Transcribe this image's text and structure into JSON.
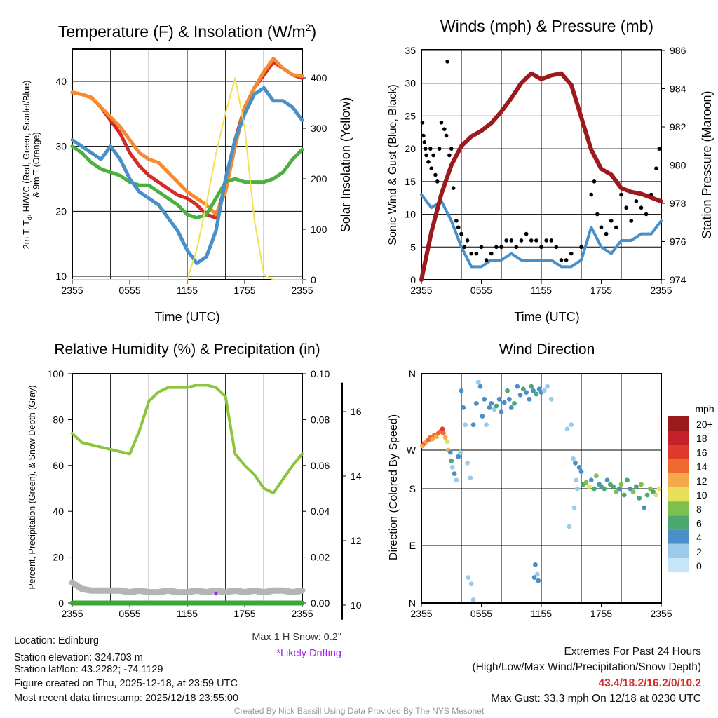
{
  "chart_data": [
    {
      "type": "line",
      "title": "Temperature (F) & Insolation (W/m²)",
      "title_main": "Temperature (F) & Insolation (W/m",
      "title_sup": "2",
      "title_end": ")",
      "xlabel": "Time (UTC)",
      "ylabel_line1": "2m T, T",
      "ylabel_sub": "d",
      "ylabel_rest": ", HI/WC (Red, Green, Scarlet/Blue)",
      "ylabel_line2": "& 9m T (Orange)",
      "y2label": "Solar Insolation (Yellow)",
      "xticks": [
        "2355",
        "0555",
        "1155",
        "1755",
        "2355"
      ],
      "yticks": [
        "10",
        "20",
        "30",
        "40"
      ],
      "y2ticks": [
        "0",
        "100",
        "200",
        "300",
        "400"
      ],
      "ylim": [
        9.5,
        45
      ],
      "y2lim": [
        0,
        465
      ],
      "hours": [
        0,
        1,
        2,
        3,
        4,
        5,
        6,
        7,
        8,
        9,
        10,
        11,
        12,
        13,
        14,
        15,
        16,
        17,
        18,
        19,
        20,
        21,
        22,
        23,
        24
      ],
      "series": [
        {
          "name": "2m T",
          "color": "#d42a2a",
          "values": [
            38.3,
            38,
            37.5,
            36,
            34,
            32,
            29,
            27,
            25.5,
            24.5,
            23.5,
            22.5,
            22,
            21,
            19.5,
            19,
            24,
            31,
            36,
            39,
            41,
            43,
            42,
            41,
            40.5
          ]
        },
        {
          "name": "9m T",
          "color": "#f68a2e",
          "values": [
            38.3,
            38,
            37.5,
            36,
            34.5,
            33,
            31,
            29,
            28,
            27.5,
            26,
            24.5,
            23,
            22,
            21,
            19.5,
            23,
            30,
            36,
            39,
            41.5,
            43.5,
            42,
            41,
            40.8
          ]
        },
        {
          "name": "Td",
          "color": "#4ab040",
          "values": [
            30,
            29,
            27.5,
            26.5,
            26,
            25.5,
            24.5,
            24,
            24,
            23,
            22,
            21,
            19.5,
            19,
            19.5,
            22,
            24.5,
            25,
            24.5,
            24.5,
            24.5,
            25,
            26,
            28,
            29.5
          ]
        },
        {
          "name": "Wind chill",
          "color": "#4a90c8",
          "values": [
            31,
            30,
            29,
            28,
            30,
            28,
            25,
            23,
            22,
            21,
            19,
            17,
            14,
            12,
            13,
            17,
            25,
            31,
            35,
            38,
            39,
            37,
            37,
            36,
            34
          ]
        },
        {
          "name": "Solar insolation",
          "color": "#f5e050",
          "axis": "right",
          "values": [
            0,
            0,
            0,
            0,
            0,
            0,
            0,
            0,
            0,
            0,
            0,
            0,
            0,
            60,
            150,
            250,
            330,
            400,
            300,
            120,
            10,
            0,
            0,
            0,
            0
          ]
        }
      ]
    },
    {
      "type": "line",
      "title": "Winds (mph) & Pressure (mb)",
      "xlabel": "Time (UTC)",
      "ylabel": "Sonic Wind & Gust (Blue, Black)",
      "y2label": "Station Pressure (Maroon)",
      "xticks": [
        "2355",
        "0555",
        "1155",
        "1755",
        "2355"
      ],
      "yticks": [
        "0",
        "5",
        "10",
        "15",
        "20",
        "25",
        "30",
        "35"
      ],
      "y2ticks": [
        "974",
        "976",
        "978",
        "980",
        "982",
        "984",
        "986"
      ],
      "ylim": [
        0,
        35
      ],
      "y2lim": [
        974,
        986
      ],
      "hours": [
        0,
        1,
        2,
        3,
        4,
        5,
        6,
        7,
        8,
        9,
        10,
        11,
        12,
        13,
        14,
        15,
        16,
        17,
        18,
        19,
        20,
        21,
        22,
        23,
        24
      ],
      "series": [
        {
          "name": "Sonic wind",
          "color": "#4a90c8",
          "values": [
            13,
            11,
            12,
            9,
            5,
            2,
            2,
            3,
            3,
            4,
            3,
            3,
            3,
            3,
            2,
            2,
            3,
            8,
            5,
            4,
            6,
            6,
            7,
            7,
            9
          ]
        },
        {
          "name": "Pressure",
          "color": "#9b1a1e",
          "axis": "right",
          "values": [
            974,
            976.5,
            978.5,
            980,
            981,
            981.5,
            981.8,
            982.2,
            982.8,
            983.5,
            984.3,
            984.8,
            984.5,
            984.7,
            984.8,
            984.2,
            982.5,
            980.8,
            979.8,
            979.5,
            978.8,
            978.6,
            978.5,
            978.3,
            978.1
          ]
        }
      ],
      "gusts": [
        [
          0.1,
          24
        ],
        [
          0.2,
          22
        ],
        [
          0.3,
          21
        ],
        [
          0.4,
          20
        ],
        [
          0.5,
          19
        ],
        [
          0.7,
          18
        ],
        [
          0.9,
          20
        ],
        [
          1,
          17
        ],
        [
          1.2,
          19
        ],
        [
          1.4,
          16
        ],
        [
          1.6,
          15
        ],
        [
          1.8,
          20
        ],
        [
          2,
          24
        ],
        [
          2.3,
          23
        ],
        [
          2.5,
          22
        ],
        [
          2.6,
          33.3
        ],
        [
          2.8,
          19
        ],
        [
          3,
          20
        ],
        [
          3.2,
          14
        ],
        [
          3.5,
          9
        ],
        [
          3.7,
          8
        ],
        [
          4,
          7
        ],
        [
          4.3,
          5
        ],
        [
          4.6,
          6
        ],
        [
          5,
          4
        ],
        [
          5.5,
          4
        ],
        [
          6,
          5
        ],
        [
          6.5,
          3
        ],
        [
          7,
          4
        ],
        [
          7.5,
          5
        ],
        [
          8,
          5
        ],
        [
          8.5,
          6
        ],
        [
          9,
          6
        ],
        [
          9.5,
          5
        ],
        [
          10,
          6
        ],
        [
          10.5,
          7
        ],
        [
          11,
          6
        ],
        [
          11.5,
          6
        ],
        [
          12,
          5
        ],
        [
          12.5,
          6
        ],
        [
          13,
          6
        ],
        [
          13.5,
          5
        ],
        [
          14,
          3
        ],
        [
          14.5,
          3
        ],
        [
          15,
          4
        ],
        [
          16,
          5
        ],
        [
          17,
          13
        ],
        [
          17.3,
          15
        ],
        [
          17.6,
          10
        ],
        [
          18,
          8
        ],
        [
          18.5,
          7
        ],
        [
          19,
          9
        ],
        [
          19.5,
          8
        ],
        [
          20,
          13
        ],
        [
          20.5,
          11
        ],
        [
          21,
          9
        ],
        [
          21.5,
          12
        ],
        [
          22,
          11
        ],
        [
          22.5,
          10
        ],
        [
          23,
          13
        ],
        [
          23.5,
          17
        ],
        [
          23.8,
          20
        ]
      ]
    },
    {
      "type": "line",
      "title": "Relative Humidity (%) & Precipitation (in)",
      "ylabel": "Percent, Precipitation (Green), & Snow Depth (Gray)",
      "xticks": [
        "2355",
        "0555",
        "1155",
        "1755",
        "2355"
      ],
      "yticks": [
        "0",
        "20",
        "40",
        "60",
        "80",
        "100"
      ],
      "y2ticks": [
        "0.00",
        "0.02",
        "0.04",
        "0.06",
        "0.08",
        "0.10"
      ],
      "y3ticks": [
        "10",
        "12",
        "14",
        "16"
      ],
      "ylim": [
        0,
        100
      ],
      "y2lim": [
        0,
        0.1
      ],
      "y3lim": [
        9.95,
        17.05
      ],
      "hours": [
        0,
        1,
        2,
        3,
        4,
        5,
        6,
        7,
        8,
        9,
        10,
        11,
        12,
        13,
        14,
        15,
        16,
        17,
        18,
        19,
        20,
        21,
        22,
        23,
        24
      ],
      "series": [
        {
          "name": "RH",
          "color": "#8cc43c",
          "values": [
            74,
            70,
            69,
            68,
            67,
            66,
            65,
            75,
            88,
            92,
            94,
            94,
            94,
            95,
            95,
            94,
            90,
            65,
            60,
            56,
            50,
            48,
            54,
            60,
            65
          ]
        },
        {
          "name": "Precipitation",
          "color": "#3aa838",
          "axis": "right",
          "values": [
            0,
            0,
            0,
            0,
            0,
            0,
            0,
            0,
            0,
            0,
            0,
            0,
            0,
            0,
            0,
            0,
            0,
            0,
            0,
            0,
            0,
            0,
            0,
            0,
            0
          ]
        },
        {
          "name": "Snow depth",
          "color": "#b4b4b4",
          "axis": "snow",
          "values": [
            10.7,
            10.5,
            10.45,
            10.45,
            10.45,
            10.45,
            10.4,
            10.45,
            10.4,
            10.4,
            10.45,
            10.4,
            10.4,
            10.45,
            10.4,
            10.45,
            10.4,
            10.45,
            10.4,
            10.45,
            10.4,
            10.45,
            10.45,
            10.4,
            10.45
          ]
        }
      ],
      "drift_point": [
        15,
        10.35
      ],
      "drift_color": "#a020f0",
      "max_snow_label": "Max 1 H Snow: 0.2\"",
      "drifting_label": "*Likely Drifting"
    },
    {
      "type": "scatter",
      "title": "Wind Direction",
      "ylabel": "Direction (Colored By Speed)",
      "xticks": [
        "2355",
        "0555",
        "1155",
        "1755",
        "2355"
      ],
      "yticks": [
        "N",
        "W",
        "S",
        "E",
        "N"
      ],
      "colorbar": {
        "title": "mph",
        "labels": [
          "20+",
          "18",
          "16",
          "14",
          "12",
          "10",
          "8",
          "6",
          "4",
          "2",
          "0"
        ],
        "colors": [
          "#9b1a1e",
          "#c4202a",
          "#e03a2a",
          "#f06a30",
          "#f6a94a",
          "#e8e05a",
          "#7cc04e",
          "#4aa870",
          "#4a8fc8",
          "#9ccbea",
          "#c6e6f7"
        ]
      },
      "points": [
        [
          0.1,
          275,
          12
        ],
        [
          0.3,
          278,
          13
        ],
        [
          0.5,
          280,
          12
        ],
        [
          0.7,
          282,
          14
        ],
        [
          0.9,
          285,
          13
        ],
        [
          1.1,
          283,
          12
        ],
        [
          1.3,
          288,
          13
        ],
        [
          1.5,
          286,
          11
        ],
        [
          1.7,
          290,
          14
        ],
        [
          1.9,
          292,
          13
        ],
        [
          2.1,
          295,
          15
        ],
        [
          2.2,
          290,
          14
        ],
        [
          2.4,
          285,
          12
        ],
        [
          2.6,
          280,
          10
        ],
        [
          2.7,
          270,
          11
        ],
        [
          2.9,
          265,
          4
        ],
        [
          3,
          245,
          5
        ],
        [
          3.1,
          230,
          2
        ],
        [
          3.3,
          215,
          3
        ],
        [
          3.5,
          200,
          2
        ],
        [
          3.7,
          255,
          4
        ],
        [
          3.9,
          265,
          2
        ],
        [
          4,
          340,
          3
        ],
        [
          4.2,
          320,
          4
        ],
        [
          4.4,
          300,
          2
        ],
        [
          4.6,
          240,
          1
        ],
        [
          4.9,
          205,
          1
        ],
        [
          5.2,
          300,
          4
        ],
        [
          5.5,
          325,
          3
        ],
        [
          5.7,
          350,
          2
        ],
        [
          5.9,
          345,
          4
        ],
        [
          6.1,
          310,
          4
        ],
        [
          6.3,
          330,
          3
        ],
        [
          6.5,
          300,
          1
        ],
        [
          6.8,
          320,
          4
        ],
        [
          7,
          325,
          3
        ],
        [
          7.3,
          318,
          2
        ],
        [
          7.5,
          322,
          5
        ],
        [
          7.8,
          330,
          4
        ],
        [
          8,
          315,
          3
        ],
        [
          8.3,
          326,
          4
        ],
        [
          8.6,
          340,
          6
        ],
        [
          8.8,
          330,
          4
        ],
        [
          9,
          320,
          3
        ],
        [
          9.3,
          325,
          5
        ],
        [
          9.6,
          345,
          4
        ],
        [
          9.9,
          335,
          4
        ],
        [
          10.2,
          342,
          5
        ],
        [
          10.5,
          338,
          3
        ],
        [
          10.8,
          330,
          4
        ],
        [
          11,
          345,
          6
        ],
        [
          11.2,
          340,
          4
        ],
        [
          11.5,
          336,
          5
        ],
        [
          11.8,
          342,
          4
        ],
        [
          12,
          338,
          3
        ],
        [
          12.3,
          340,
          2
        ],
        [
          12.6,
          345,
          1
        ],
        [
          13,
          330,
          1
        ],
        [
          11.4,
          60,
          3
        ],
        [
          11.6,
          45,
          2
        ],
        [
          11.3,
          40,
          3
        ],
        [
          11.7,
          35,
          4
        ],
        [
          4.7,
          40,
          1
        ],
        [
          5,
          30,
          2
        ],
        [
          5.2,
          5,
          1
        ],
        [
          14.6,
          295,
          1
        ],
        [
          15,
          300,
          2
        ],
        [
          15.2,
          250,
          2
        ],
        [
          15.4,
          240,
          3
        ],
        [
          15.5,
          200,
          2
        ],
        [
          15.6,
          180,
          1
        ],
        [
          15.3,
          150,
          2
        ],
        [
          14.8,
          120,
          1
        ],
        [
          15.8,
          230,
          3
        ],
        [
          16,
          220,
          4
        ],
        [
          16.2,
          190,
          6
        ],
        [
          16.5,
          195,
          8
        ],
        [
          16.8,
          185,
          10
        ],
        [
          17,
          200,
          4
        ],
        [
          17.3,
          180,
          6
        ],
        [
          17.5,
          210,
          7
        ],
        [
          17.8,
          190,
          4
        ],
        [
          18,
          185,
          6
        ],
        [
          18.3,
          180,
          5
        ],
        [
          18.6,
          200,
          4
        ],
        [
          18.9,
          190,
          6
        ],
        [
          19.2,
          185,
          5
        ],
        [
          19.5,
          175,
          7
        ],
        [
          19.8,
          180,
          4
        ],
        [
          20,
          190,
          8
        ],
        [
          20.3,
          170,
          5
        ],
        [
          20.6,
          200,
          6
        ],
        [
          20.9,
          180,
          4
        ],
        [
          21.2,
          175,
          7
        ],
        [
          21.5,
          185,
          6
        ],
        [
          21.8,
          165,
          5
        ],
        [
          22,
          190,
          8
        ],
        [
          22.3,
          150,
          4
        ],
        [
          22.6,
          170,
          6
        ],
        [
          22.9,
          180,
          8
        ],
        [
          23.2,
          175,
          6
        ],
        [
          23.5,
          170,
          10
        ],
        [
          23.8,
          180,
          9
        ]
      ]
    }
  ],
  "info": {
    "location": "Location: Edinburg",
    "elevation": "Station elevation: 324.703 m",
    "latlon": "Station lat/lon: 43.2282; -74.1129",
    "created": "Figure created on Thu, 2025-12-18, at 23:59 UTC",
    "recent": "Most recent data timestamp: 2025/12/18 23:55:00"
  },
  "extremes": {
    "title": "Extremes For Past 24 Hours",
    "subtitle": "(High/Low/Max Wind/Precipitation/Snow Depth)",
    "values": "43.4/18.2/16.2/0/10.2",
    "max_gust": "Max Gust: 33.3 mph On 12/18 at 0230 UTC",
    "value_color": "#d42a2a"
  },
  "credit": "Created By Nick Bassill Using Data Provided By The NYS Mesonet"
}
